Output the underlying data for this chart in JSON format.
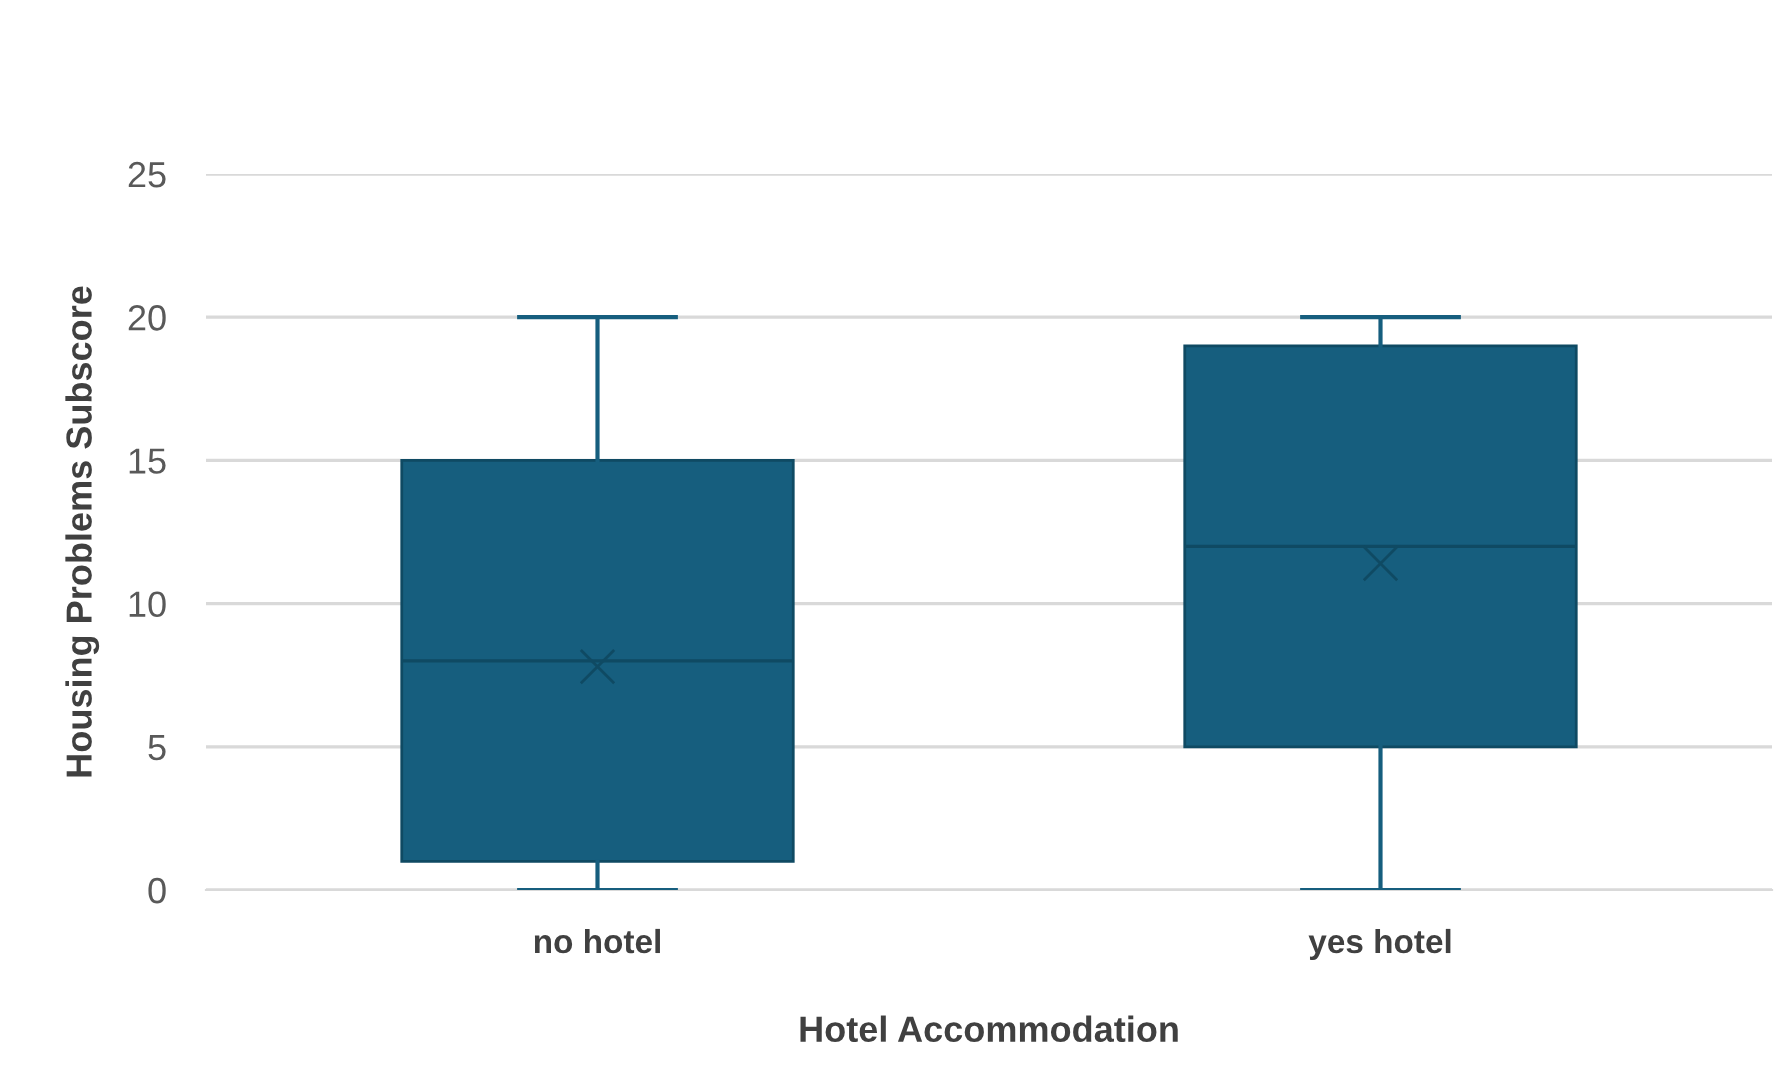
{
  "chart_data": {
    "type": "box",
    "xlabel": "Hotel Accommodation",
    "ylabel": "Housing Problems Subscore",
    "categories": [
      "no hotel",
      "yes hotel"
    ],
    "boxes": [
      {
        "low": 0,
        "q1": 1,
        "median": 8,
        "q3": 15,
        "high": 20,
        "mean": 7.8
      },
      {
        "low": 0,
        "q1": 5,
        "median": 12,
        "q3": 19,
        "high": 20,
        "mean": 11.4
      }
    ],
    "color": "#165e7e",
    "ylim": [
      0,
      25
    ],
    "yticks": [
      0,
      5,
      10,
      15,
      20,
      25
    ],
    "grid": "y",
    "marker": "cross"
  }
}
